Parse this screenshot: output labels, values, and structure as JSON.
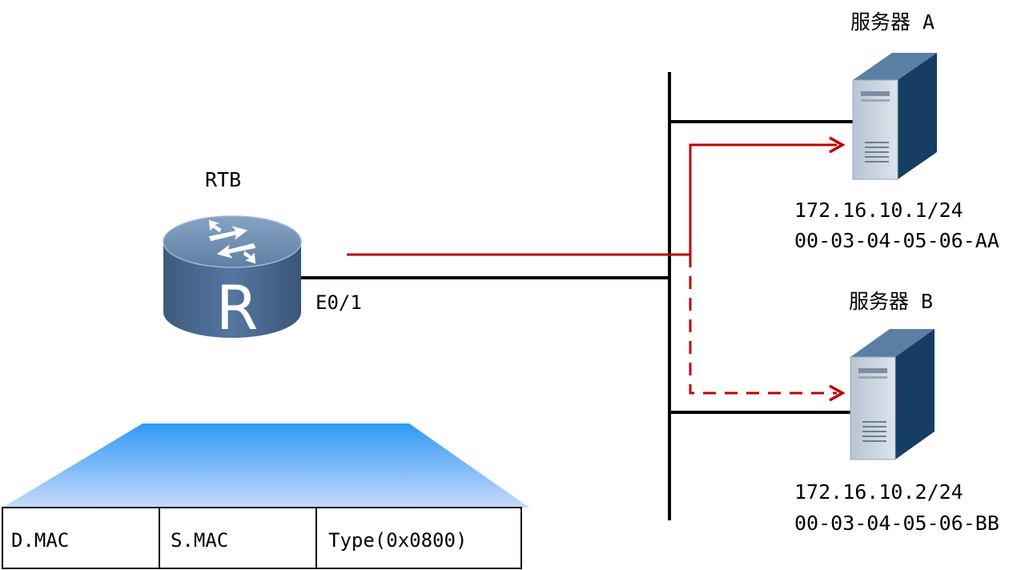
{
  "router": {
    "name": "RTB",
    "interface": "E0/1",
    "icon_letter": "R"
  },
  "servers": [
    {
      "name": "服务器 A",
      "ip": "172.16.10.1/24",
      "mac": "00-03-04-05-06-AA"
    },
    {
      "name": "服务器 B",
      "ip": "172.16.10.2/24",
      "mac": "00-03-04-05-06-BB"
    }
  ],
  "frame": {
    "fields": [
      "D.MAC",
      "S.MAC",
      "Type(0x0800)"
    ]
  },
  "colors": {
    "link": "#000000",
    "path_red": "#c00000",
    "router_body": "#4a6a8e",
    "router_top": "#6f8db0",
    "server_front": "#c9d3de",
    "server_side": "#163d63",
    "server_top": "#5a7fa3",
    "frame_gradient_top": "#2f9af5",
    "frame_gradient_bottom": "#c7d9fa"
  },
  "icons": {
    "router": "router-icon",
    "server": "server-icon",
    "arrow": "arrow-head-icon"
  }
}
